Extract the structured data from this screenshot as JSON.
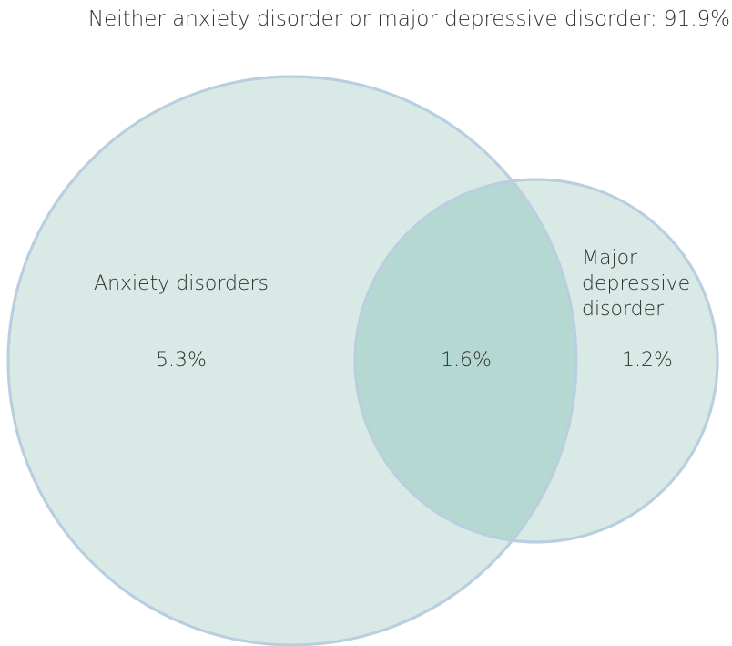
{
  "diagram": {
    "outside_label": "Neither anxiety disorder or major depressive disorder: 91.9%",
    "sets": [
      {
        "label_lines": [
          "Anxiety disorders"
        ],
        "value": "5.3%",
        "fill": "#d8e9e6",
        "stroke": "#b9cfe0"
      },
      {
        "label_lines": [
          "Major",
          "depressive",
          "disorder"
        ],
        "value": "1.2%",
        "fill": "#d8e9e6",
        "stroke": "#b9cfe0"
      }
    ],
    "intersection": {
      "value": "1.6%",
      "fill": "#b6d8d2"
    }
  }
}
